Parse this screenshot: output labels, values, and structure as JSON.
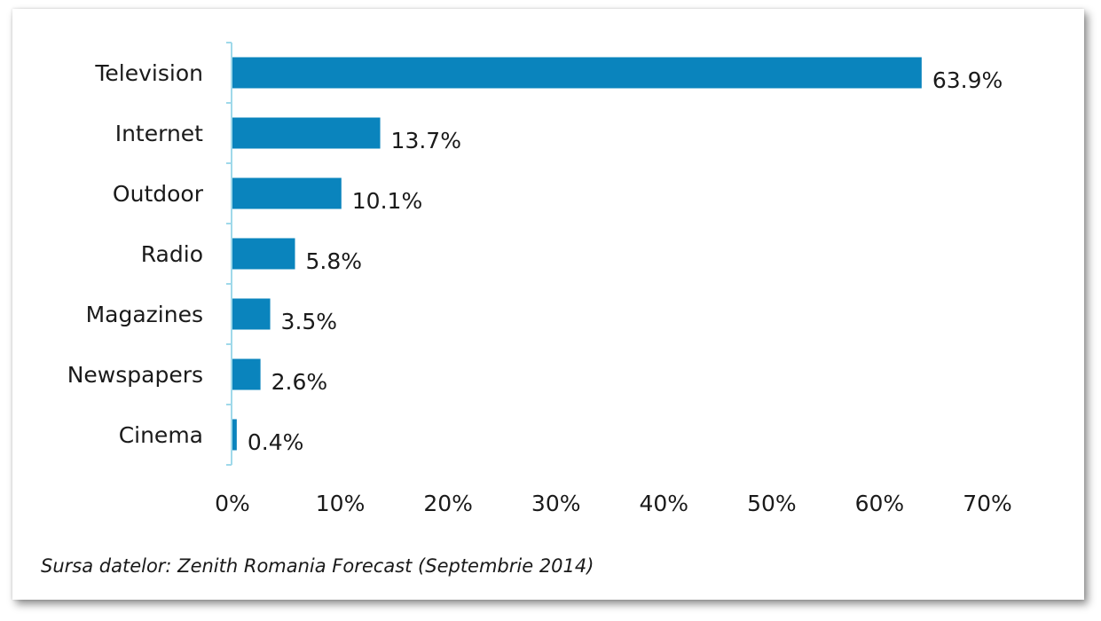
{
  "chart_data": {
    "type": "bar",
    "orientation": "horizontal",
    "categories": [
      "Television",
      "Internet",
      "Outdoor",
      "Radio",
      "Magazines",
      "Newspapers",
      "Cinema"
    ],
    "values": [
      63.9,
      13.7,
      10.1,
      5.8,
      3.5,
      2.6,
      0.4
    ],
    "value_labels": [
      "63.9%",
      "13.7%",
      "10.1%",
      "5.8%",
      "3.5%",
      "2.6%",
      "0.4%"
    ],
    "x_ticks": [
      "0%",
      "10%",
      "20%",
      "30%",
      "40%",
      "50%",
      "60%",
      "70%"
    ],
    "xlim": [
      0,
      70
    ],
    "bar_color": "#0a84bd",
    "axis_color": "#9fd9ea",
    "grid": false,
    "legend": "none"
  },
  "source_note": "Sursa datelor: Zenith Romania Forecast (Septembrie 2014)"
}
